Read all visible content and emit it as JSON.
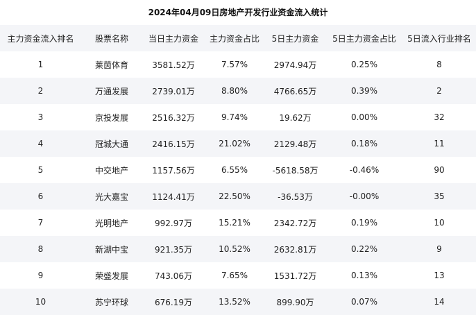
{
  "title": "2024年04月09日房地产开发行业资金流入统计",
  "table": {
    "headers": [
      "主力资金流入排名",
      "股票名称",
      "当日主力资金",
      "主力资金占比",
      "5日主力资金",
      "5日主力资金占比",
      "5日流入行业排名"
    ],
    "rows": [
      [
        "1",
        "莱茵体育",
        "3581.52万",
        "7.57%",
        "2974.94万",
        "0.25%",
        "8"
      ],
      [
        "2",
        "万通发展",
        "2739.01万",
        "8.80%",
        "4766.65万",
        "0.39%",
        "2"
      ],
      [
        "3",
        "京投发展",
        "2516.32万",
        "9.74%",
        "19.62万",
        "0.00%",
        "32"
      ],
      [
        "4",
        "冠城大通",
        "2416.15万",
        "21.02%",
        "2129.48万",
        "0.18%",
        "11"
      ],
      [
        "5",
        "中交地产",
        "1157.56万",
        "6.55%",
        "-5618.58万",
        "-0.46%",
        "90"
      ],
      [
        "6",
        "光大嘉宝",
        "1124.41万",
        "22.50%",
        "-36.53万",
        "-0.00%",
        "35"
      ],
      [
        "7",
        "光明地产",
        "992.97万",
        "15.21%",
        "2342.72万",
        "0.19%",
        "10"
      ],
      [
        "8",
        "新湖中宝",
        "921.35万",
        "10.52%",
        "2632.81万",
        "0.22%",
        "9"
      ],
      [
        "9",
        "荣盛发展",
        "743.06万",
        "7.65%",
        "1531.72万",
        "0.13%",
        "13"
      ],
      [
        "10",
        "苏宁环球",
        "676.19万",
        "13.52%",
        "899.90万",
        "0.07%",
        "14"
      ]
    ]
  }
}
